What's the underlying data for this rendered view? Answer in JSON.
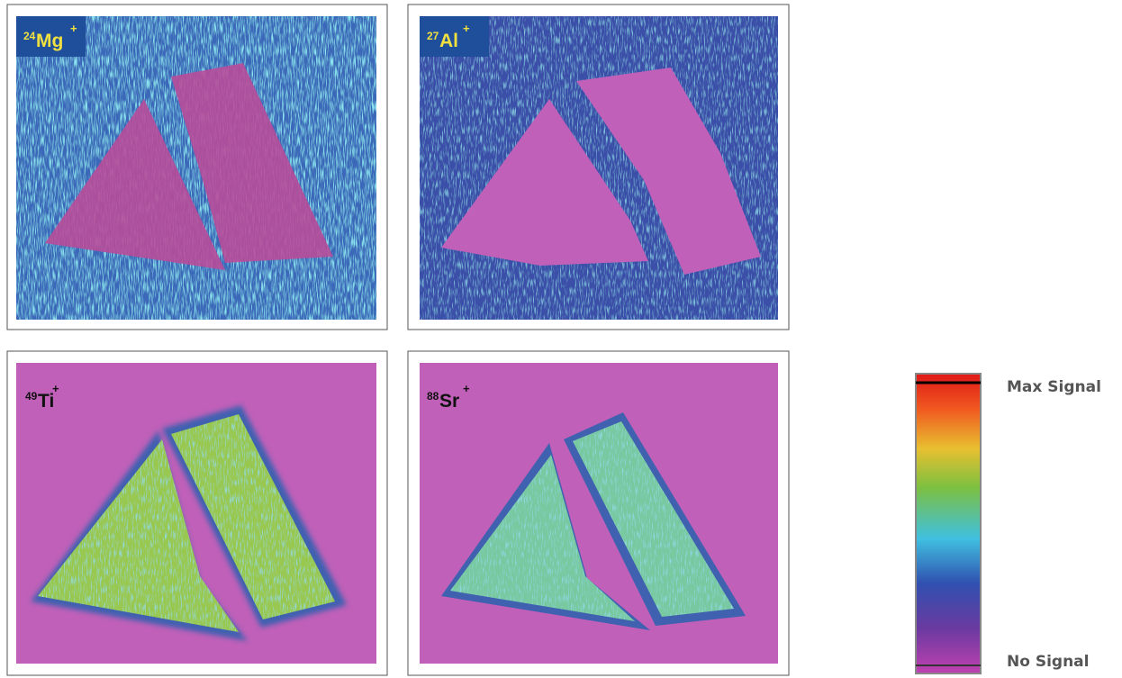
{
  "panels": [
    {
      "mass": "24",
      "element": "Mg",
      "charge": "+"
    },
    {
      "mass": "27",
      "element": "Al",
      "charge": "+"
    },
    {
      "mass": "49",
      "element": "Ti",
      "charge": "+"
    },
    {
      "mass": "88",
      "element": "Sr",
      "charge": "+"
    }
  ],
  "colorbar": {
    "max_label": "Max Signal",
    "min_label": "No Signal"
  }
}
